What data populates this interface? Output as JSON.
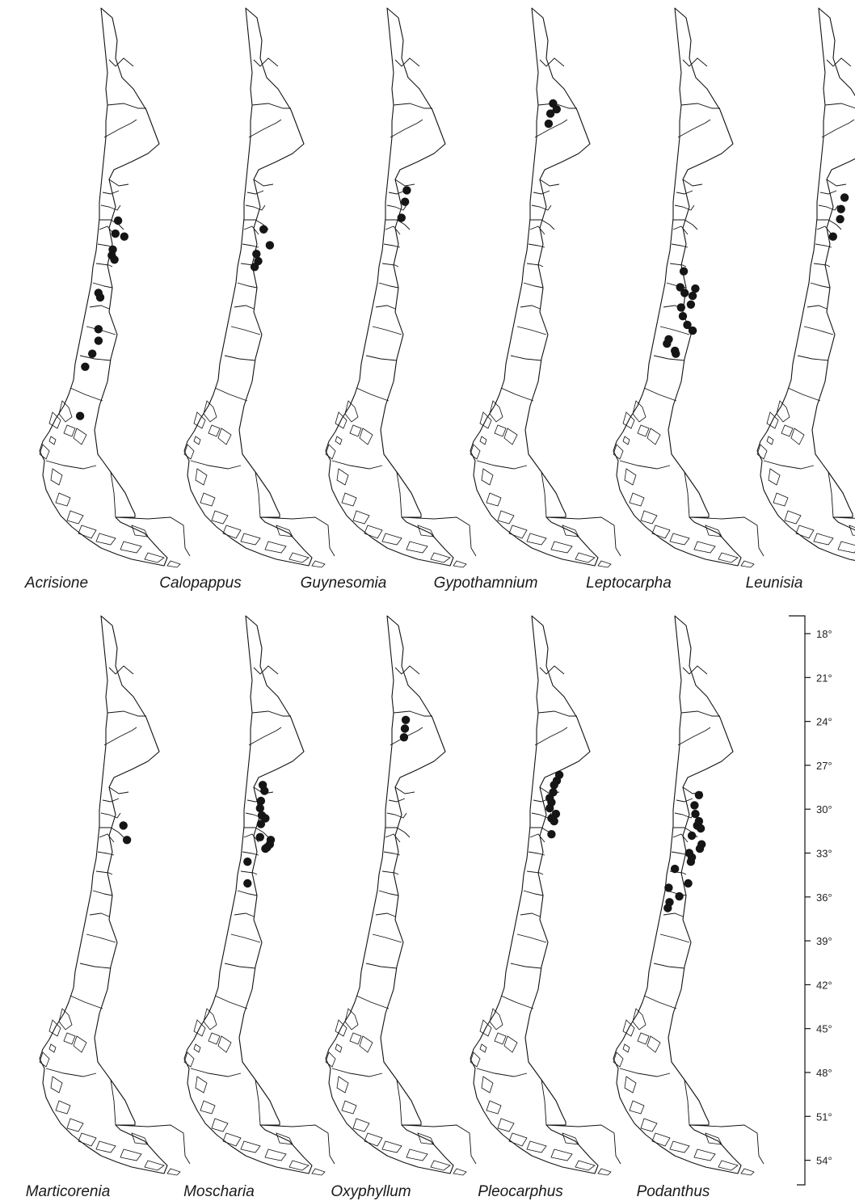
{
  "figure": {
    "panels": [
      {
        "genus": "Acrisione",
        "localities": [
          [
            -31.8,
            0.05
          ],
          [
            -32.7,
            -0.1
          ],
          [
            -32.9,
            0.4
          ],
          [
            -33.8,
            -0.25
          ],
          [
            -34.2,
            0.15
          ],
          [
            -34.5,
            0.3
          ],
          [
            -36.8,
            -0.6
          ],
          [
            -37.1,
            -0.5
          ],
          [
            -39.3,
            -0.6
          ],
          [
            -40.1,
            -0.05
          ],
          [
            -41.0,
            -0.4
          ],
          [
            -41.9,
            -0.8
          ],
          [
            -45.3,
            -0.45
          ]
        ]
      },
      {
        "genus": "Calopappus",
        "localities": [
          [
            -32.4,
            0.1
          ],
          [
            -33.5,
            0.45
          ],
          [
            -34.1,
            0.15
          ],
          [
            -34.6,
            0.25
          ],
          [
            -35.0,
            0.05
          ]
        ]
      },
      {
        "genus": "Guynesomia",
        "localities": [
          [
            -29.7,
            0.2
          ],
          [
            -30.5,
            0.1
          ],
          [
            -31.6,
            -0.1
          ]
        ]
      },
      {
        "genus": "Gypothamnium",
        "localities": [
          [
            -23.7,
            0.2
          ],
          [
            -24.1,
            0.4
          ],
          [
            -24.4,
            0.05
          ],
          [
            -25.1,
            -0.05
          ]
        ]
      },
      {
        "genus": "Leptocarpha",
        "localities": [
          [
            -35.3,
            0.05
          ],
          [
            -36.4,
            -0.15
          ],
          [
            -36.8,
            0.1
          ],
          [
            -36.5,
            0.7
          ],
          [
            -37.0,
            0.55
          ],
          [
            -37.6,
            0.45
          ],
          [
            -37.8,
            -0.1
          ],
          [
            -38.4,
            0.0
          ],
          [
            -39.0,
            0.25
          ],
          [
            -39.4,
            0.55
          ],
          [
            -40.0,
            -0.25
          ],
          [
            -40.3,
            -0.35
          ],
          [
            -40.8,
            0.1
          ],
          [
            -41.0,
            0.15
          ]
        ]
      },
      {
        "genus": "Leunisia",
        "localities": [
          [
            -30.2,
            0.55
          ],
          [
            -31.0,
            0.35
          ],
          [
            -31.7,
            0.3
          ],
          [
            -32.9,
            -0.1
          ]
        ]
      }
    ],
    "panels_bottom": [
      {
        "genus": "Marticorenia",
        "localities": [
          [
            -31.6,
            0.35
          ],
          [
            -32.6,
            0.55
          ]
        ]
      },
      {
        "genus": "Moscharia",
        "localities": [
          [
            -28.8,
            0.05
          ],
          [
            -29.2,
            0.15
          ],
          [
            -29.9,
            -0.05
          ],
          [
            -30.4,
            -0.1
          ],
          [
            -30.9,
            0.0
          ],
          [
            -31.1,
            0.2
          ],
          [
            -31.5,
            -0.05
          ],
          [
            -32.4,
            -0.1
          ],
          [
            -32.6,
            0.5
          ],
          [
            -32.9,
            0.45
          ],
          [
            -33.2,
            0.2
          ],
          [
            -33.1,
            0.3
          ],
          [
            -34.1,
            -0.35
          ],
          [
            -35.6,
            -0.35
          ]
        ]
      },
      {
        "genus": "Oxyphyllum",
        "localities": [
          [
            -24.3,
            0.05
          ],
          [
            -24.9,
            0.0
          ],
          [
            -25.5,
            -0.05
          ]
        ]
      },
      {
        "genus": "Pleocarphus",
        "localities": [
          [
            -28.1,
            0.55
          ],
          [
            -28.5,
            0.5
          ],
          [
            -28.8,
            0.35
          ],
          [
            -29.3,
            0.3
          ],
          [
            -29.7,
            0.1
          ],
          [
            -30.0,
            0.2
          ],
          [
            -30.4,
            0.1
          ],
          [
            -30.8,
            0.45
          ],
          [
            -31.1,
            0.2
          ],
          [
            -31.3,
            0.35
          ],
          [
            -32.2,
            0.2
          ]
        ]
      },
      {
        "genus": "Podanthus",
        "localities": [
          [
            -29.5,
            0.45
          ],
          [
            -30.2,
            0.2
          ],
          [
            -30.8,
            0.25
          ],
          [
            -31.3,
            0.45
          ],
          [
            -31.6,
            0.35
          ],
          [
            -31.8,
            0.55
          ],
          [
            -32.3,
            0.05
          ],
          [
            -32.9,
            0.6
          ],
          [
            -33.2,
            0.5
          ],
          [
            -33.8,
            0.05
          ],
          [
            -33.5,
            -0.1
          ],
          [
            -34.1,
            0.45
          ],
          [
            -34.6,
            -0.45
          ],
          [
            -35.6,
            0.3
          ],
          [
            -35.9,
            -0.8
          ],
          [
            -36.5,
            -0.2
          ],
          [
            -36.9,
            -0.75
          ],
          [
            -37.3,
            -0.85
          ]
        ]
      }
    ],
    "latitude_scale": {
      "ticks": [
        "18°",
        "21°",
        "24°",
        "27°",
        "30°",
        "33°",
        "36°",
        "39°",
        "42°",
        "45°",
        "48°",
        "51°",
        "54°"
      ],
      "values": [
        -18,
        -21,
        -24,
        -27,
        -30,
        -33,
        -36,
        -39,
        -42,
        -45,
        -48,
        -51,
        -54
      ]
    }
  }
}
